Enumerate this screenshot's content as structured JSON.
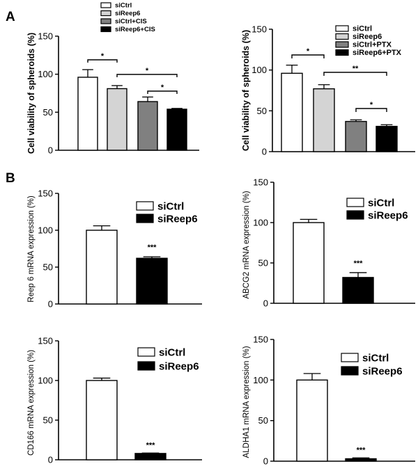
{
  "panel_labels": [
    "A",
    "B"
  ],
  "chart_data": [
    {
      "type": "bar",
      "ylabel": "Cell viability of spheroids  (%)",
      "ylim": [
        0,
        150
      ],
      "yticks": [
        0,
        50,
        100,
        150
      ],
      "series": [
        {
          "name": "siCtrl",
          "value": 96,
          "error": 10,
          "fill": "#ffffff"
        },
        {
          "name": "siReep6",
          "value": 81,
          "error": 4,
          "fill": "#d4d4d4"
        },
        {
          "name": "siCtrl+CIS",
          "value": 64,
          "error": 6,
          "fill": "#808080"
        },
        {
          "name": "siReep6+CIS",
          "value": 54,
          "error": 1,
          "fill": "#000000"
        }
      ],
      "significance": [
        {
          "from": 0,
          "to": 1,
          "label": "*"
        },
        {
          "from": 1,
          "to": 3,
          "label": "*"
        },
        {
          "from": 2,
          "to": 3,
          "label": "*"
        }
      ]
    },
    {
      "type": "bar",
      "ylabel": "Cell viability of spheroids (%)",
      "ylim": [
        0,
        150
      ],
      "yticks": [
        0,
        50,
        100,
        150
      ],
      "series": [
        {
          "name": "siCtrl",
          "value": 96,
          "error": 10,
          "fill": "#ffffff"
        },
        {
          "name": "siReep6",
          "value": 77,
          "error": 5,
          "fill": "#d4d4d4"
        },
        {
          "name": "siCtrl+PTX",
          "value": 37,
          "error": 2,
          "fill": "#808080"
        },
        {
          "name": "siReep6+PTX",
          "value": 31,
          "error": 2,
          "fill": "#000000"
        }
      ],
      "significance": [
        {
          "from": 0,
          "to": 1,
          "label": "*"
        },
        {
          "from": 1,
          "to": 3,
          "label": "**"
        },
        {
          "from": 2,
          "to": 3,
          "label": "*"
        }
      ]
    },
    {
      "type": "bar",
      "ylabel": "Reep 6 mRNA expression (%)",
      "ylim": [
        0,
        150
      ],
      "yticks": [
        0,
        50,
        100,
        150
      ],
      "series": [
        {
          "name": "siCtrl",
          "value": 100,
          "error": 6,
          "fill": "#ffffff"
        },
        {
          "name": "siReep6",
          "value": 62,
          "error": 2,
          "fill": "#000000"
        }
      ],
      "annotation": "***"
    },
    {
      "type": "bar",
      "ylabel": "ABCG2 mRNA expression (%)",
      "ylim": [
        0,
        150
      ],
      "yticks": [
        0,
        50,
        100,
        150
      ],
      "series": [
        {
          "name": "siCtrl",
          "value": 100,
          "error": 4,
          "fill": "#ffffff"
        },
        {
          "name": "siReep6",
          "value": 32,
          "error": 6,
          "fill": "#000000"
        }
      ],
      "annotation": "***"
    },
    {
      "type": "bar",
      "ylabel": "CD166 mRNA expression (%)",
      "ylim": [
        0,
        150
      ],
      "yticks": [
        0,
        50,
        100,
        150
      ],
      "series": [
        {
          "name": "siCtrl",
          "value": 100,
          "error": 3,
          "fill": "#ffffff"
        },
        {
          "name": "siReep6",
          "value": 8,
          "error": 0.5,
          "fill": "#000000"
        }
      ],
      "annotation": "***"
    },
    {
      "type": "bar",
      "ylabel": "ALDHA1 mRNA expression (%)",
      "ylim": [
        0,
        150
      ],
      "yticks": [
        0,
        50,
        100,
        150
      ],
      "series": [
        {
          "name": "siCtrl",
          "value": 100,
          "error": 8,
          "fill": "#ffffff"
        },
        {
          "name": "siReep6",
          "value": 3,
          "error": 1,
          "fill": "#000000"
        }
      ],
      "annotation": "***"
    }
  ]
}
